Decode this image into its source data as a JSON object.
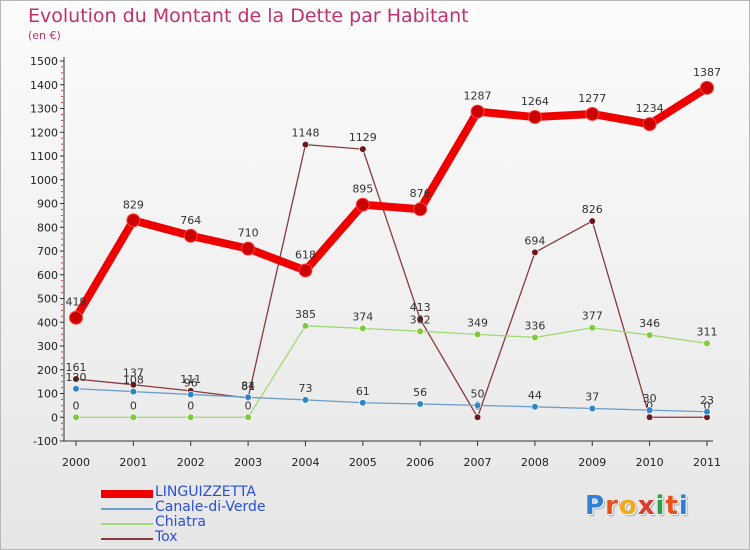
{
  "chart_data": {
    "type": "line",
    "title": "Evolution du Montant de la Dette par Habitant",
    "subtitle": "(en €)",
    "categories": [
      "2000",
      "2001",
      "2002",
      "2003",
      "2004",
      "2005",
      "2006",
      "2007",
      "2008",
      "2009",
      "2010",
      "2011"
    ],
    "ylim": [
      -100,
      1500
    ],
    "yticks": [
      -100,
      0,
      100,
      200,
      300,
      400,
      500,
      600,
      700,
      800,
      900,
      1000,
      1100,
      1200,
      1300,
      1400,
      1500
    ],
    "grid": false,
    "legend_position": "bottom-left",
    "series": [
      {
        "name": "LINGUIZZETTA",
        "color": "#ee0000",
        "marker": "#cc0000",
        "values": [
          419,
          829,
          764,
          710,
          618,
          895,
          876,
          1287,
          1264,
          1277,
          1234,
          1387
        ],
        "labels": [
          "419",
          "829",
          "764",
          "710",
          "618",
          "895",
          "876",
          "1287",
          "1264",
          "1277",
          "1234",
          "1387"
        ]
      },
      {
        "name": "Canale-di-Verde",
        "color": "#6a9ecd",
        "marker": "#2f86c6",
        "values": [
          120,
          108,
          96,
          84,
          73,
          61,
          56,
          50,
          44,
          37,
          30,
          23
        ],
        "labels": [
          "120",
          "108",
          "96",
          "84",
          "73",
          "61",
          "56",
          "50",
          "44",
          "37",
          "30",
          "23"
        ]
      },
      {
        "name": "Chiatra",
        "color": "#a0d876",
        "marker": "#7fca3c",
        "values": [
          0,
          0,
          0,
          0,
          385,
          374,
          362,
          349,
          336,
          377,
          346,
          311
        ],
        "labels": [
          "0",
          "0",
          "0",
          "0",
          "385",
          "374",
          "362",
          "349",
          "336",
          "377",
          "346",
          "311"
        ]
      },
      {
        "name": "Tox",
        "color": "#8a3a3a",
        "marker": "#6a1a1a",
        "values": [
          161,
          137,
          111,
          81,
          1148,
          1129,
          413,
          0,
          694,
          826,
          0,
          0
        ],
        "labels": [
          "161",
          "137",
          "111",
          "81",
          "1148",
          "1129",
          "413",
          "0",
          "694",
          "826",
          "0",
          "0"
        ]
      }
    ]
  },
  "logo": {
    "letters": [
      "P",
      "r",
      "o",
      "x",
      "i",
      "t",
      "i"
    ],
    "colors": [
      "#2f7fd6",
      "#e8501c",
      "#f2a81c",
      "#e03a2a",
      "#2aa04a",
      "#e8501c",
      "#2f7fd6"
    ]
  }
}
